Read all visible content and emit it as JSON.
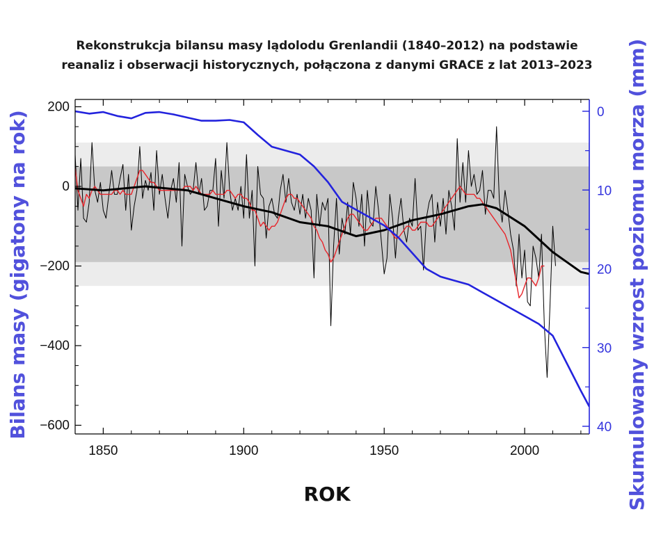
{
  "title_lines": [
    "Rekonstrukcja bilansu masy lądolodu Grenlandii (1840–2012) na podstawie",
    "reanaliz i obserwacji historycznych, połączona z danymi GRACE z lat 2013–2023"
  ],
  "colors": {
    "annual": "#000000",
    "smoothed": "#e8242a",
    "trend": "#000000",
    "cumulative": "#2323dd",
    "band_outer": "#ececec",
    "band_inner": "#c8c8c8",
    "right_axis": "#2323dd",
    "label_accent": "#5151dc"
  },
  "chart_data": {
    "type": "line",
    "xlabel": "ROK",
    "ylabel_left": "Bilans masy (gigatony na rok)",
    "ylabel_right": "Skumulowany wzrost poziomu morza (mm)",
    "xlim": [
      1840,
      2023
    ],
    "ylim_left": [
      -600,
      210
    ],
    "ylim_right": [
      0,
      40
    ],
    "right_axis_inverted": true,
    "grid": false,
    "x_ticks": [
      "1850",
      "1900",
      "1950",
      "2000"
    ],
    "y_ticks_left": [
      "200",
      "0",
      "−200",
      "−400",
      "−600"
    ],
    "y_ticks_right": [
      "0",
      "10",
      "20",
      "30",
      "40"
    ],
    "bands": [
      {
        "range": [
          -250,
          110
        ]
      },
      {
        "range": [
          -190,
          50
        ]
      }
    ],
    "series_annual": {
      "x_start": 1840,
      "values": [
        80,
        -60,
        70,
        -80,
        -90,
        -40,
        110,
        -10,
        -40,
        10,
        -60,
        -80,
        -20,
        40,
        -20,
        -20,
        20,
        55,
        -60,
        30,
        -110,
        -50,
        -10,
        100,
        -30,
        15,
        -10,
        35,
        -60,
        90,
        -20,
        30,
        -30,
        -80,
        -10,
        20,
        -40,
        60,
        -150,
        30,
        0,
        -20,
        -10,
        60,
        -20,
        20,
        -60,
        -50,
        -10,
        -10,
        70,
        -100,
        40,
        -30,
        110,
        -10,
        -60,
        -30,
        -60,
        0,
        -80,
        80,
        -80,
        -10,
        -200,
        50,
        -20,
        -30,
        -130,
        -50,
        -30,
        -70,
        -80,
        -10,
        30,
        -40,
        20,
        -40,
        -60,
        -20,
        -70,
        -20,
        -80,
        -30,
        -60,
        -230,
        -20,
        -100,
        -40,
        -60,
        -30,
        -350,
        -150,
        -30,
        -170,
        -80,
        -120,
        -40,
        -120,
        10,
        -30,
        -100,
        -20,
        -150,
        -10,
        -90,
        -100,
        0,
        -60,
        -140,
        -220,
        -180,
        -20,
        -80,
        -180,
        -80,
        -30,
        -110,
        -140,
        -80,
        -100,
        20,
        -110,
        -100,
        -210,
        -80,
        -40,
        -20,
        -140,
        -40,
        -100,
        -30,
        -120,
        -10,
        -50,
        -110,
        120,
        -40,
        60,
        -40,
        90,
        0,
        30,
        -20,
        -10,
        40,
        -70,
        -10,
        -10,
        -30,
        150,
        -40,
        -90,
        -10,
        -60,
        -120,
        -160,
        -250,
        -120,
        -230,
        -160,
        -290,
        -300,
        -150,
        -180,
        -230,
        -120,
        -350,
        -480,
        -300,
        -100,
        -200
      ]
    },
    "series_smoothed": {
      "x_start": 1840,
      "values": [
        45,
        -10,
        -30,
        -50,
        -20,
        -30,
        -10,
        0,
        -10,
        -20,
        -20,
        -20,
        -20,
        -20,
        -10,
        -10,
        -20,
        -10,
        -20,
        -20,
        -20,
        0,
        20,
        40,
        40,
        30,
        20,
        10,
        10,
        0,
        -10,
        -10,
        -10,
        -10,
        -10,
        -10,
        -10,
        -10,
        -10,
        0,
        0,
        0,
        -10,
        0,
        -10,
        -20,
        -20,
        -20,
        -20,
        -10,
        -20,
        -20,
        -20,
        -20,
        -10,
        -10,
        -20,
        -30,
        -20,
        -20,
        -30,
        -30,
        -40,
        -60,
        -60,
        -80,
        -100,
        -90,
        -100,
        -110,
        -100,
        -100,
        -90,
        -70,
        -50,
        -30,
        -20,
        -20,
        -30,
        -30,
        -40,
        -50,
        -60,
        -70,
        -80,
        -100,
        -110,
        -130,
        -140,
        -160,
        -170,
        -190,
        -180,
        -160,
        -140,
        -120,
        -100,
        -80,
        -70,
        -70,
        -80,
        -90,
        -100,
        -110,
        -110,
        -100,
        -90,
        -80,
        -80,
        -80,
        -90,
        -100,
        -110,
        -120,
        -130,
        -130,
        -120,
        -110,
        -100,
        -100,
        -110,
        -110,
        -100,
        -90,
        -90,
        -90,
        -100,
        -100,
        -90,
        -80,
        -70,
        -60,
        -50,
        -40,
        -30,
        -20,
        -10,
        0,
        -10,
        -20,
        -20,
        -20,
        -20,
        -30,
        -30,
        -40,
        -50,
        -60,
        -70,
        -80,
        -90,
        -100,
        -110,
        -120,
        -140,
        -160,
        -200,
        -240,
        -280,
        -270,
        -250,
        -230,
        -230,
        -240,
        -250,
        -230,
        -200,
        -200
      ]
    },
    "series_trend": {
      "x": [
        1840,
        1850,
        1865,
        1880,
        1890,
        1900,
        1910,
        1920,
        1930,
        1940,
        1950,
        1960,
        1970,
        1980,
        1985,
        1990,
        2000,
        2010,
        2015,
        2020,
        2023
      ],
      "values": [
        -5,
        -10,
        0,
        -10,
        -30,
        -50,
        -65,
        -90,
        -100,
        -125,
        -110,
        -85,
        -70,
        -50,
        -45,
        -55,
        -100,
        -165,
        -190,
        -215,
        -220
      ]
    },
    "series_cumulative": {
      "x": [
        1840,
        1845,
        1850,
        1855,
        1860,
        1865,
        1870,
        1875,
        1880,
        1885,
        1890,
        1895,
        1900,
        1905,
        1910,
        1915,
        1920,
        1925,
        1930,
        1935,
        1940,
        1945,
        1950,
        1955,
        1960,
        1965,
        1970,
        1975,
        1980,
        1985,
        1990,
        1995,
        2000,
        2005,
        2010,
        2015,
        2020,
        2023
      ],
      "values": [
        0,
        0.3,
        0.1,
        0.6,
        0.9,
        0.2,
        0.1,
        0.4,
        0.8,
        1.2,
        1.2,
        1.1,
        1.4,
        3.0,
        4.5,
        5.0,
        5.5,
        7.0,
        9.0,
        11.5,
        12.5,
        13.5,
        14.5,
        16.0,
        18.0,
        20.0,
        21.0,
        21.5,
        22.0,
        23.0,
        24.0,
        25.0,
        26.0,
        27.0,
        28.5,
        32.0,
        35.5,
        37.5
      ]
    }
  }
}
